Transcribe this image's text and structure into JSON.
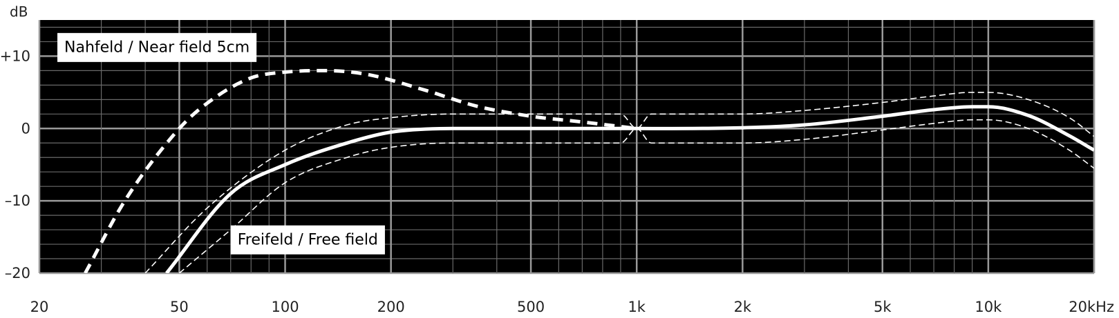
{
  "chart_data": {
    "type": "line",
    "x_scale": "log",
    "xlim": [
      20,
      20000
    ],
    "ylim": [
      -20,
      15
    ],
    "grid": true,
    "background": "#000000",
    "line_color": "#ffffff",
    "y_unit": "dB",
    "x_ticks": [
      {
        "value": 20,
        "label": "20"
      },
      {
        "value": 50,
        "label": "50"
      },
      {
        "value": 100,
        "label": "100"
      },
      {
        "value": 200,
        "label": "200"
      },
      {
        "value": 500,
        "label": "500"
      },
      {
        "value": 1000,
        "label": "1k"
      },
      {
        "value": 2000,
        "label": "2k"
      },
      {
        "value": 5000,
        "label": "5k"
      },
      {
        "value": 10000,
        "label": "10k"
      },
      {
        "value": 20000,
        "label": "20kHz"
      }
    ],
    "y_ticks": [
      {
        "value": 10,
        "label": "+10"
      },
      {
        "value": 0,
        "label": "0"
      },
      {
        "value": -10,
        "label": "–10"
      },
      {
        "value": -20,
        "label": "–20"
      }
    ],
    "annotations": [
      {
        "text": "Nahfeld / Near field  5cm",
        "x": 22.5,
        "y": 11.2
      },
      {
        "text": "Freifeld / Free  field",
        "x": 70,
        "y": -15.4
      }
    ],
    "series": [
      {
        "style": "dashed-thick",
        "points": [
          [
            27,
            -20
          ],
          [
            35,
            -10
          ],
          [
            50,
            0
          ],
          [
            60,
            3.5
          ],
          [
            80,
            7
          ],
          [
            100,
            7.8
          ],
          [
            130,
            8
          ],
          [
            170,
            7.5
          ],
          [
            250,
            5.3
          ],
          [
            350,
            3.1
          ],
          [
            500,
            1.7
          ],
          [
            700,
            0.9
          ],
          [
            1000,
            0
          ]
        ]
      },
      {
        "style": "solid",
        "points": [
          [
            46,
            -20
          ],
          [
            70,
            -9
          ],
          [
            100,
            -5
          ],
          [
            150,
            -2
          ],
          [
            200,
            -0.5
          ],
          [
            300,
            0
          ],
          [
            500,
            0
          ],
          [
            1000,
            0
          ],
          [
            2000,
            0.1
          ],
          [
            3000,
            0.5
          ],
          [
            5000,
            1.7
          ],
          [
            7000,
            2.6
          ],
          [
            9000,
            3
          ],
          [
            10000,
            3
          ],
          [
            13000,
            1.8
          ],
          [
            17000,
            -1
          ],
          [
            20000,
            -3
          ]
        ]
      },
      {
        "style": "dashed-thin",
        "points": [
          [
            40,
            -20
          ],
          [
            60,
            -11
          ],
          [
            100,
            -3
          ],
          [
            150,
            0.5
          ],
          [
            200,
            1.5
          ],
          [
            300,
            2
          ],
          [
            500,
            2
          ],
          [
            900,
            2
          ],
          [
            1000,
            0
          ],
          [
            1100,
            2
          ],
          [
            2000,
            2
          ],
          [
            3000,
            2.5
          ],
          [
            5000,
            3.6
          ],
          [
            7000,
            4.5
          ],
          [
            9000,
            5
          ],
          [
            10000,
            5
          ],
          [
            13000,
            4
          ],
          [
            17000,
            1.5
          ],
          [
            20000,
            -1.1
          ]
        ]
      },
      {
        "style": "dashed-thin",
        "points": [
          [
            50,
            -20
          ],
          [
            70,
            -14
          ],
          [
            100,
            -7.5
          ],
          [
            150,
            -4
          ],
          [
            200,
            -2.6
          ],
          [
            300,
            -2
          ],
          [
            500,
            -2
          ],
          [
            900,
            -2
          ],
          [
            1000,
            0
          ],
          [
            1100,
            -2
          ],
          [
            2000,
            -2
          ],
          [
            3000,
            -1.5
          ],
          [
            5000,
            -0.2
          ],
          [
            7000,
            0.7
          ],
          [
            9000,
            1.2
          ],
          [
            10000,
            1.2
          ],
          [
            13000,
            0
          ],
          [
            17000,
            -3
          ],
          [
            20000,
            -5.5
          ]
        ]
      }
    ]
  }
}
